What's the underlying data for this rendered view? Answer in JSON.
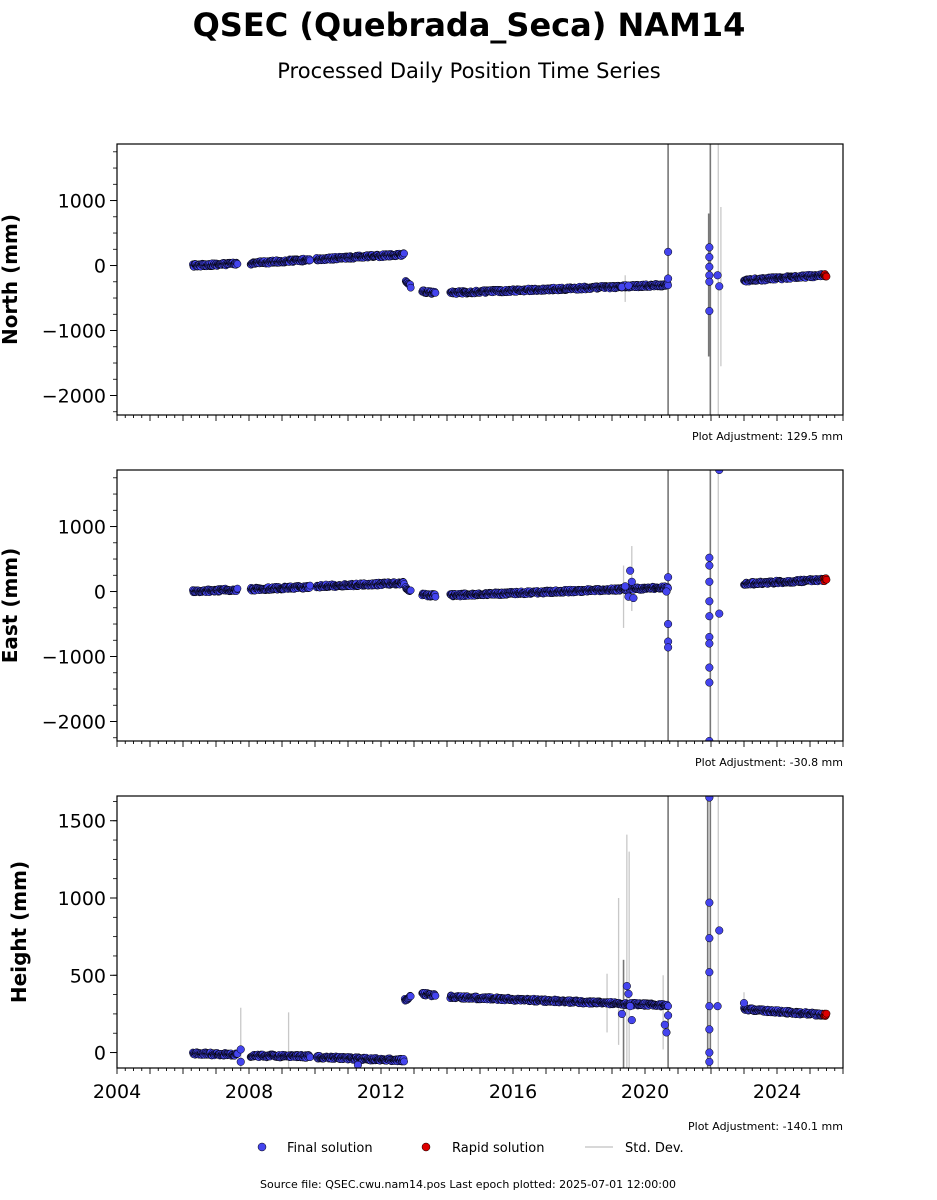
{
  "title": "QSEC (Quebrada_Seca) NAM14",
  "subtitle": "Processed Daily Position Time Series",
  "panels": [
    {
      "ylabel": "North (mm)",
      "adjustment": "Plot Adjustment: 129.5 mm"
    },
    {
      "ylabel": "East (mm)",
      "adjustment": "Plot Adjustment: -30.8 mm"
    },
    {
      "ylabel": "Height (mm)",
      "adjustment": "Plot Adjustment: -140.1 mm"
    }
  ],
  "legend": {
    "final": "Final solution",
    "rapid": "Rapid solution",
    "std": "Std. Dev."
  },
  "footer": "Source file: QSEC.cwu.nam14.pos  Last epoch plotted: 2025-07-01 12:00:00",
  "colors": {
    "final": "#4444ee",
    "rapid": "#dd0000",
    "marker_edge": "#000000",
    "std_dev": "#999999"
  },
  "chart_data": [
    {
      "type": "scatter",
      "ylabel": "North (mm)",
      "xlim": [
        2004.0,
        2026.0
      ],
      "ylim": [
        -2300,
        1870
      ],
      "yticks": [
        1000,
        0,
        -1000,
        -2000
      ],
      "ytick_labels": [
        "1000",
        "0",
        "−1000",
        "−2000"
      ],
      "grid": false,
      "segments": [
        {
          "start": 2006.3,
          "end": 2007.65,
          "y0": 0,
          "y1": 30,
          "series": "final"
        },
        {
          "start": 2008.05,
          "end": 2009.85,
          "y0": 35,
          "y1": 90,
          "series": "final"
        },
        {
          "start": 2010.05,
          "end": 2012.7,
          "y0": 95,
          "y1": 170,
          "series": "final"
        },
        {
          "start": 2012.75,
          "end": 2012.9,
          "y0": -240,
          "y1": -320,
          "series": "final"
        },
        {
          "start": 2013.25,
          "end": 2013.65,
          "y0": -400,
          "y1": -420,
          "series": "final"
        },
        {
          "start": 2014.1,
          "end": 2020.7,
          "y0": -420,
          "y1": -300,
          "series": "final"
        },
        {
          "start": 2023.0,
          "end": 2025.4,
          "y0": -230,
          "y1": -150,
          "series": "final"
        },
        {
          "start": 2025.42,
          "end": 2025.5,
          "y0": -150,
          "y1": -148,
          "series": "rapid"
        }
      ],
      "outliers": [
        {
          "x": 2019.3,
          "y": -330
        },
        {
          "x": 2019.5,
          "y": -310
        },
        {
          "x": 2020.7,
          "y": 210
        },
        {
          "x": 2020.7,
          "y": -200
        },
        {
          "x": 2021.95,
          "y": 280
        },
        {
          "x": 2021.95,
          "y": 130
        },
        {
          "x": 2021.95,
          "y": -20
        },
        {
          "x": 2021.95,
          "y": -150
        },
        {
          "x": 2021.95,
          "y": -250
        },
        {
          "x": 2021.95,
          "y": -700
        },
        {
          "x": 2022.2,
          "y": -150
        },
        {
          "x": 2022.25,
          "y": -320
        }
      ],
      "errorbars": [
        {
          "x": 2020.7,
          "ylow": -2300,
          "yhigh": 1870,
          "dark": true
        },
        {
          "x": 2021.98,
          "ylow": -2300,
          "yhigh": 1870,
          "dark": true
        },
        {
          "x": 2021.93,
          "ylow": -1400,
          "yhigh": 800,
          "dark": true
        },
        {
          "x": 2022.22,
          "ylow": -2300,
          "yhigh": 1870,
          "dark": false
        },
        {
          "x": 2022.3,
          "ylow": -1550,
          "yhigh": 900,
          "dark": false
        },
        {
          "x": 2019.4,
          "ylow": -560,
          "yhigh": -150,
          "dark": false
        }
      ]
    },
    {
      "type": "scatter",
      "ylabel": "East (mm)",
      "xlim": [
        2004.0,
        2026.0
      ],
      "ylim": [
        -2300,
        1870
      ],
      "yticks": [
        1000,
        0,
        -1000,
        -2000
      ],
      "ytick_labels": [
        "1000",
        "0",
        "−1000",
        "−2000"
      ],
      "grid": false,
      "segments": [
        {
          "start": 2006.3,
          "end": 2007.65,
          "y0": 0,
          "y1": 30,
          "series": "final"
        },
        {
          "start": 2008.05,
          "end": 2009.85,
          "y0": 35,
          "y1": 70,
          "series": "final"
        },
        {
          "start": 2010.05,
          "end": 2012.7,
          "y0": 80,
          "y1": 130,
          "series": "final"
        },
        {
          "start": 2012.75,
          "end": 2012.9,
          "y0": 60,
          "y1": 0,
          "series": "final"
        },
        {
          "start": 2013.25,
          "end": 2013.65,
          "y0": -50,
          "y1": -60,
          "series": "final"
        },
        {
          "start": 2014.1,
          "end": 2020.7,
          "y0": -60,
          "y1": 60,
          "series": "final"
        },
        {
          "start": 2023.0,
          "end": 2025.4,
          "y0": 120,
          "y1": 180,
          "series": "final"
        },
        {
          "start": 2025.42,
          "end": 2025.5,
          "y0": 180,
          "y1": 182,
          "series": "rapid"
        }
      ],
      "outliers": [
        {
          "x": 2019.4,
          "y": 80
        },
        {
          "x": 2019.5,
          "y": -80
        },
        {
          "x": 2019.55,
          "y": 320
        },
        {
          "x": 2019.6,
          "y": 150
        },
        {
          "x": 2019.65,
          "y": -100
        },
        {
          "x": 2020.7,
          "y": 220
        },
        {
          "x": 2020.7,
          "y": -500
        },
        {
          "x": 2020.7,
          "y": -770
        },
        {
          "x": 2020.7,
          "y": -860
        },
        {
          "x": 2020.65,
          "y": 0
        },
        {
          "x": 2021.95,
          "y": 520
        },
        {
          "x": 2021.95,
          "y": 400
        },
        {
          "x": 2021.95,
          "y": 150
        },
        {
          "x": 2021.95,
          "y": -150
        },
        {
          "x": 2021.95,
          "y": -380
        },
        {
          "x": 2021.95,
          "y": -700
        },
        {
          "x": 2021.95,
          "y": -800
        },
        {
          "x": 2021.95,
          "y": -1170
        },
        {
          "x": 2021.95,
          "y": -1400
        },
        {
          "x": 2021.95,
          "y": -2300
        },
        {
          "x": 2022.25,
          "y": -340
        },
        {
          "x": 2022.25,
          "y": 1870
        }
      ],
      "errorbars": [
        {
          "x": 2020.7,
          "ylow": -2300,
          "yhigh": 1870,
          "dark": true
        },
        {
          "x": 2021.98,
          "ylow": -2300,
          "yhigh": 1870,
          "dark": true
        },
        {
          "x": 2022.22,
          "ylow": -2300,
          "yhigh": 1870,
          "dark": false
        },
        {
          "x": 2019.35,
          "ylow": -560,
          "yhigh": 400,
          "dark": false
        },
        {
          "x": 2019.6,
          "ylow": -300,
          "yhigh": 700,
          "dark": false
        }
      ]
    },
    {
      "type": "scatter",
      "ylabel": "Height (mm)",
      "xlim": [
        2004.0,
        2026.0
      ],
      "ylim": [
        -100,
        1660
      ],
      "yticks": [
        1500,
        1000,
        500,
        0
      ],
      "ytick_labels": [
        "1500",
        "1000",
        "500",
        "0"
      ],
      "xticks": [
        2004,
        2008,
        2012,
        2016,
        2020,
        2024
      ],
      "xtick_labels": [
        "2004",
        "2008",
        "2012",
        "2016",
        "2020",
        "2024"
      ],
      "grid": false,
      "segments": [
        {
          "start": 2006.3,
          "end": 2007.65,
          "y0": -5,
          "y1": -15,
          "series": "final"
        },
        {
          "start": 2008.05,
          "end": 2009.85,
          "y0": -20,
          "y1": -25,
          "series": "final"
        },
        {
          "start": 2010.05,
          "end": 2012.7,
          "y0": -30,
          "y1": -50,
          "series": "final"
        },
        {
          "start": 2012.72,
          "end": 2012.9,
          "y0": 340,
          "y1": 360,
          "series": "final"
        },
        {
          "start": 2013.25,
          "end": 2013.65,
          "y0": 380,
          "y1": 370,
          "series": "final"
        },
        {
          "start": 2014.1,
          "end": 2020.7,
          "y0": 360,
          "y1": 305,
          "series": "final"
        },
        {
          "start": 2023.0,
          "end": 2025.4,
          "y0": 280,
          "y1": 245,
          "series": "final"
        },
        {
          "start": 2025.42,
          "end": 2025.5,
          "y0": 245,
          "y1": 243,
          "series": "rapid"
        }
      ],
      "outliers": [
        {
          "x": 2007.75,
          "y": -60
        },
        {
          "x": 2007.75,
          "y": 20
        },
        {
          "x": 2011.3,
          "y": -80
        },
        {
          "x": 2019.3,
          "y": 250
        },
        {
          "x": 2019.45,
          "y": 430
        },
        {
          "x": 2019.5,
          "y": 380
        },
        {
          "x": 2019.6,
          "y": 210
        },
        {
          "x": 2019.55,
          "y": 300
        },
        {
          "x": 2020.6,
          "y": 180
        },
        {
          "x": 2020.65,
          "y": 130
        },
        {
          "x": 2020.7,
          "y": 240
        },
        {
          "x": 2021.95,
          "y": 1650
        },
        {
          "x": 2021.95,
          "y": 970
        },
        {
          "x": 2021.95,
          "y": 740
        },
        {
          "x": 2021.95,
          "y": 520
        },
        {
          "x": 2021.95,
          "y": 300
        },
        {
          "x": 2021.95,
          "y": 150
        },
        {
          "x": 2021.95,
          "y": 0
        },
        {
          "x": 2021.95,
          "y": -60
        },
        {
          "x": 2022.25,
          "y": 790
        },
        {
          "x": 2022.2,
          "y": 300
        },
        {
          "x": 2023.0,
          "y": 320
        }
      ],
      "errorbars": [
        {
          "x": 2007.75,
          "ylow": -100,
          "yhigh": 290,
          "dark": false
        },
        {
          "x": 2009.2,
          "ylow": -100,
          "yhigh": 260,
          "dark": false
        },
        {
          "x": 2018.85,
          "ylow": 130,
          "yhigh": 510,
          "dark": false
        },
        {
          "x": 2019.2,
          "ylow": 50,
          "yhigh": 1000,
          "dark": false
        },
        {
          "x": 2019.35,
          "ylow": -100,
          "yhigh": 600,
          "dark": true
        },
        {
          "x": 2019.45,
          "ylow": -100,
          "yhigh": 1410,
          "dark": false
        },
        {
          "x": 2019.52,
          "ylow": -100,
          "yhigh": 1300,
          "dark": false
        },
        {
          "x": 2020.55,
          "ylow": 20,
          "yhigh": 500,
          "dark": false
        },
        {
          "x": 2020.7,
          "ylow": -100,
          "yhigh": 1660,
          "dark": true
        },
        {
          "x": 2021.9,
          "ylow": -100,
          "yhigh": 1660,
          "dark": true
        },
        {
          "x": 2021.98,
          "ylow": -100,
          "yhigh": 1660,
          "dark": true
        },
        {
          "x": 2022.22,
          "ylow": -100,
          "yhigh": 1660,
          "dark": false
        },
        {
          "x": 2023.0,
          "ylow": 250,
          "yhigh": 390,
          "dark": false
        }
      ]
    }
  ]
}
